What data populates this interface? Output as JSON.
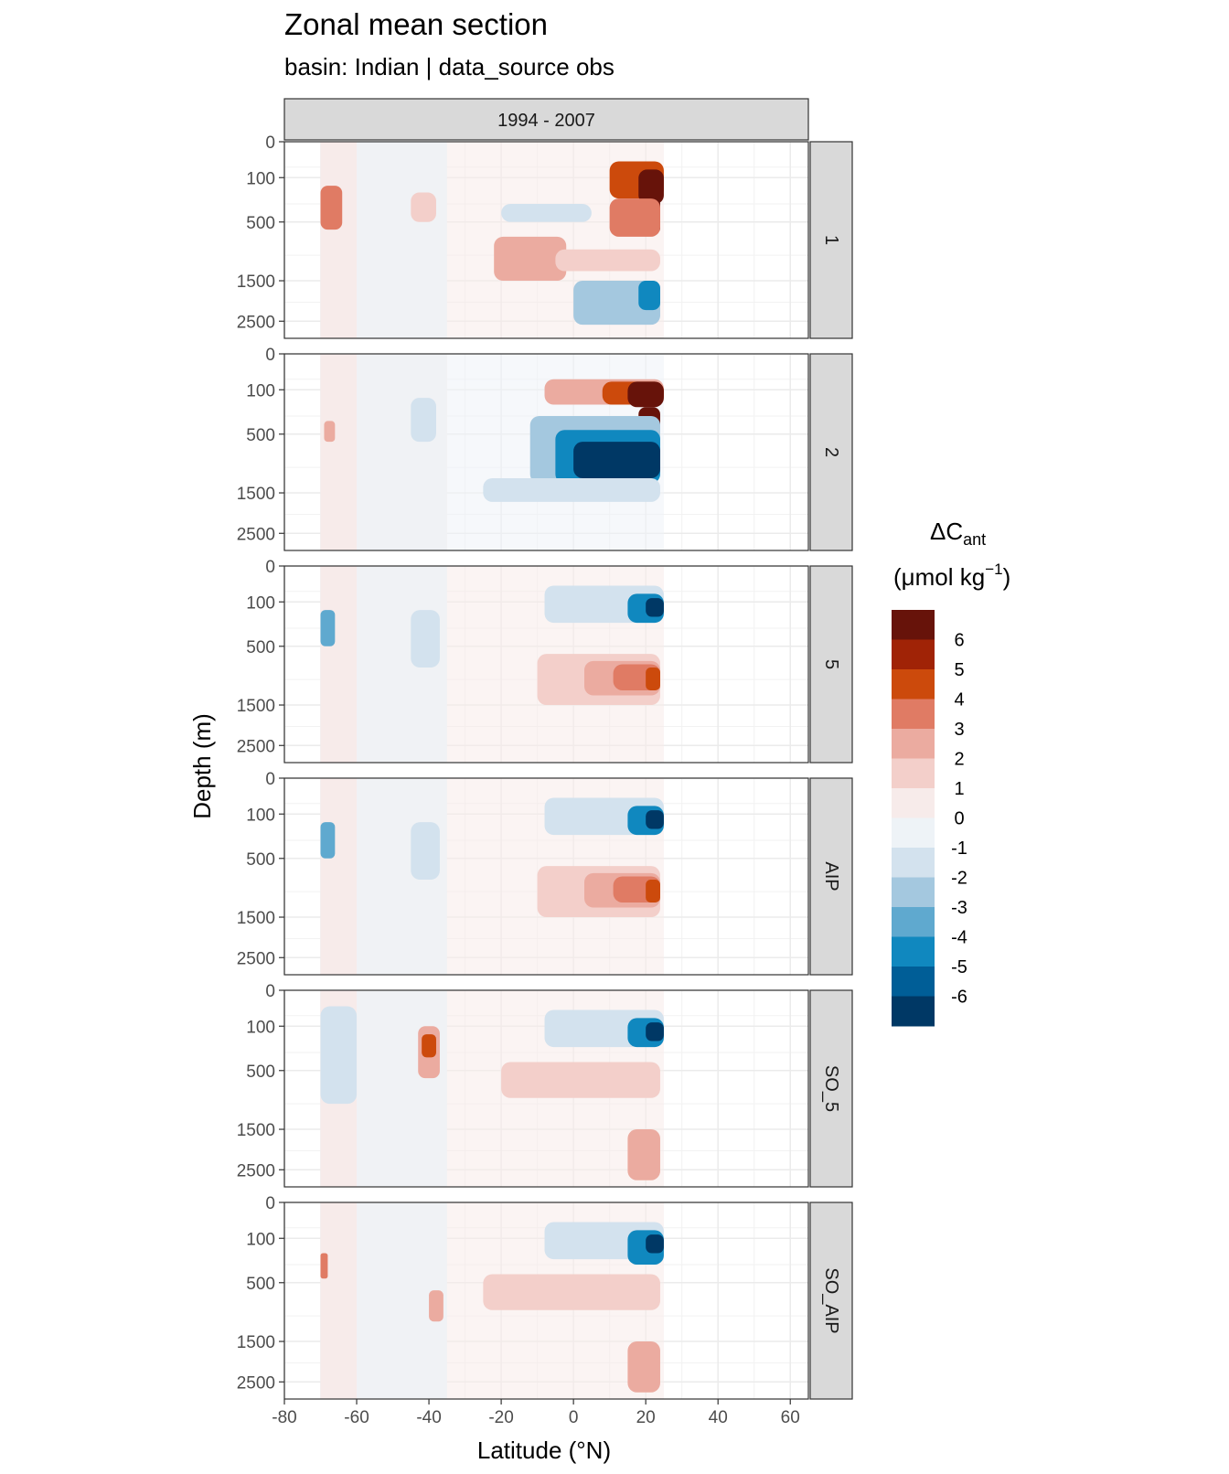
{
  "chart_data": {
    "type": "heatmap",
    "title": "Zonal mean section",
    "subtitle": "basin: Indian | data_source obs",
    "xlabel": "Latitude (°N)",
    "ylabel": "Depth (m)",
    "column_facet": "1994 - 2007",
    "x_ticks": [
      -80,
      -60,
      -40,
      -20,
      0,
      20,
      40,
      60
    ],
    "xlim": [
      -80,
      65
    ],
    "y_ticks": [
      0,
      100,
      500,
      1500,
      2500
    ],
    "y_scale": "sqrt",
    "ylim": [
      0,
      3000
    ],
    "data_lat_range": [
      -70,
      25
    ],
    "legend": {
      "title_main": "ΔC",
      "title_sub": "ant",
      "title_unit_open": "(μmol kg",
      "title_unit_sup": "−1",
      "title_unit_close": ")",
      "placement": "right",
      "breaks": [
        6,
        5,
        4,
        3,
        2,
        1,
        0,
        -1,
        -2,
        -3,
        -4,
        -5,
        -6
      ],
      "colors": [
        "#67130a",
        "#a02306",
        "#cc4a0c",
        "#e07b64",
        "#ebaba0",
        "#f3cfca",
        "#f7ebea",
        "#eef3f7",
        "#d3e2ee",
        "#a4c8df",
        "#5fa9cf",
        "#1088bf",
        "#005e97",
        "#003865"
      ]
    },
    "panels": [
      {
        "label": "1",
        "features": [
          {
            "lat": [
              10,
              25
            ],
            "depth": [
              30,
              250
            ],
            "value": 4.5
          },
          {
            "lat": [
              18,
              25
            ],
            "depth": [
              60,
              300
            ],
            "value": 6.5
          },
          {
            "lat": [
              20,
              24
            ],
            "depth": [
              250,
              650
            ],
            "value": 6.5
          },
          {
            "lat": [
              10,
              24
            ],
            "depth": [
              250,
              700
            ],
            "value": 3.5
          },
          {
            "lat": [
              -20,
              5
            ],
            "depth": [
              300,
              500
            ],
            "value": -1.5
          },
          {
            "lat": [
              -22,
              -2
            ],
            "depth": [
              700,
              1500
            ],
            "value": 2.5
          },
          {
            "lat": [
              -70,
              -64
            ],
            "depth": [
              150,
              600
            ],
            "value": 3.5
          },
          {
            "lat": [
              -45,
              -38
            ],
            "depth": [
              200,
              500
            ],
            "value": 1.5
          },
          {
            "lat": [
              0,
              24
            ],
            "depth": [
              1500,
              2600
            ],
            "value": -2.5
          },
          {
            "lat": [
              18,
              24
            ],
            "depth": [
              1500,
              2200
            ],
            "value": -4.5
          },
          {
            "lat": [
              -5,
              24
            ],
            "depth": [
              900,
              1300
            ],
            "value": 1.5
          }
        ]
      },
      {
        "label": "2",
        "features": [
          {
            "lat": [
              -8,
              25
            ],
            "depth": [
              50,
              200
            ],
            "value": 2.5
          },
          {
            "lat": [
              8,
              25
            ],
            "depth": [
              60,
              200
            ],
            "value": 4.5
          },
          {
            "lat": [
              15,
              25
            ],
            "depth": [
              60,
              220
            ],
            "value": 6.5
          },
          {
            "lat": [
              18,
              24
            ],
            "depth": [
              220,
              450
            ],
            "value": 6.5
          },
          {
            "lat": [
              -12,
              24
            ],
            "depth": [
              300,
              1300
            ],
            "value": -2.5
          },
          {
            "lat": [
              -5,
              24
            ],
            "depth": [
              450,
              1300
            ],
            "value": -4.5
          },
          {
            "lat": [
              0,
              24
            ],
            "depth": [
              600,
              1200
            ],
            "value": -6.5
          },
          {
            "lat": [
              -45,
              -38
            ],
            "depth": [
              150,
              600
            ],
            "value": -1.5
          },
          {
            "lat": [
              -25,
              24
            ],
            "depth": [
              1200,
              1700
            ],
            "value": -1.5
          },
          {
            "lat": [
              -69,
              -66
            ],
            "depth": [
              350,
              600
            ],
            "value": 2.5
          }
        ]
      },
      {
        "label": "5",
        "features": [
          {
            "lat": [
              -8,
              25
            ],
            "depth": [
              30,
              250
            ],
            "value": -1.5
          },
          {
            "lat": [
              15,
              25
            ],
            "depth": [
              60,
              250
            ],
            "value": -4.5
          },
          {
            "lat": [
              20,
              25
            ],
            "depth": [
              80,
              200
            ],
            "value": -6
          },
          {
            "lat": [
              -10,
              24
            ],
            "depth": [
              600,
              1500
            ],
            "value": 1.5
          },
          {
            "lat": [
              3,
              24
            ],
            "depth": [
              700,
              1300
            ],
            "value": 2.5
          },
          {
            "lat": [
              11,
              24
            ],
            "depth": [
              750,
              1200
            ],
            "value": 3.5
          },
          {
            "lat": [
              20,
              24
            ],
            "depth": [
              800,
              1200
            ],
            "value": 4.5
          },
          {
            "lat": [
              -70,
              -66
            ],
            "depth": [
              150,
              500
            ],
            "value": -3
          },
          {
            "lat": [
              -45,
              -37
            ],
            "depth": [
              150,
              800
            ],
            "value": -1.5
          }
        ]
      },
      {
        "label": "AIP",
        "features": [
          {
            "lat": [
              -8,
              25
            ],
            "depth": [
              30,
              250
            ],
            "value": -1.5
          },
          {
            "lat": [
              15,
              25
            ],
            "depth": [
              60,
              250
            ],
            "value": -4.5
          },
          {
            "lat": [
              20,
              25
            ],
            "depth": [
              80,
              200
            ],
            "value": -6
          },
          {
            "lat": [
              -10,
              24
            ],
            "depth": [
              600,
              1500
            ],
            "value": 1.5
          },
          {
            "lat": [
              3,
              24
            ],
            "depth": [
              700,
              1300
            ],
            "value": 2.5
          },
          {
            "lat": [
              11,
              24
            ],
            "depth": [
              750,
              1200
            ],
            "value": 3.5
          },
          {
            "lat": [
              20,
              24
            ],
            "depth": [
              800,
              1200
            ],
            "value": 4.5
          },
          {
            "lat": [
              -70,
              -66
            ],
            "depth": [
              150,
              500
            ],
            "value": -3
          },
          {
            "lat": [
              -45,
              -37
            ],
            "depth": [
              150,
              800
            ],
            "value": -1.5
          }
        ]
      },
      {
        "label": "SO_5",
        "features": [
          {
            "lat": [
              -8,
              25
            ],
            "depth": [
              30,
              250
            ],
            "value": -1.5
          },
          {
            "lat": [
              15,
              25
            ],
            "depth": [
              60,
              250
            ],
            "value": -4.5
          },
          {
            "lat": [
              20,
              25
            ],
            "depth": [
              80,
              200
            ],
            "value": -6
          },
          {
            "lat": [
              -70,
              -60
            ],
            "depth": [
              20,
              1000
            ],
            "value": -1.5
          },
          {
            "lat": [
              -43,
              -37
            ],
            "depth": [
              100,
              600
            ],
            "value": 2.5
          },
          {
            "lat": [
              -42,
              -38
            ],
            "depth": [
              150,
              350
            ],
            "value": 4.5
          },
          {
            "lat": [
              -20,
              24
            ],
            "depth": [
              400,
              900
            ],
            "value": 1.5
          },
          {
            "lat": [
              15,
              24
            ],
            "depth": [
              1500,
              2800
            ],
            "value": 2.5
          }
        ]
      },
      {
        "label": "SO_AIP",
        "features": [
          {
            "lat": [
              -8,
              25
            ],
            "depth": [
              30,
              250
            ],
            "value": -1.5
          },
          {
            "lat": [
              15,
              25
            ],
            "depth": [
              60,
              300
            ],
            "value": -4.5
          },
          {
            "lat": [
              20,
              25
            ],
            "depth": [
              80,
              200
            ],
            "value": -6
          },
          {
            "lat": [
              -70,
              -68
            ],
            "depth": [
              200,
              450
            ],
            "value": 3.5
          },
          {
            "lat": [
              -40,
              -36
            ],
            "depth": [
              600,
              1100
            ],
            "value": 2.5
          },
          {
            "lat": [
              -25,
              24
            ],
            "depth": [
              400,
              900
            ],
            "value": 1.5
          },
          {
            "lat": [
              15,
              24
            ],
            "depth": [
              1500,
              2800
            ],
            "value": 2.5
          }
        ]
      }
    ]
  }
}
